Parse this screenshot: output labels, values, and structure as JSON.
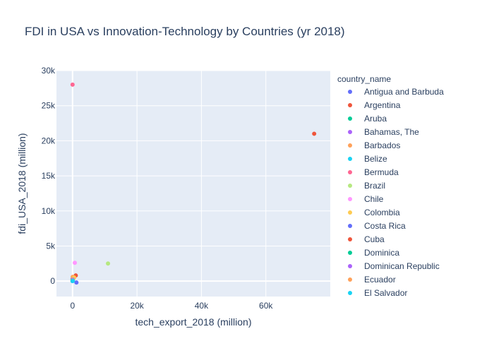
{
  "chart_data": {
    "type": "scatter",
    "title": "FDI in USA vs Innovation-Technology by Countries (yr 2018)",
    "xlabel": "tech_export_2018 (million)",
    "ylabel": "fdi_USA_2018 (million)",
    "xlim": [
      -5000,
      80000
    ],
    "ylim": [
      -2200,
      30000
    ],
    "x_ticks": [
      {
        "value": 0,
        "label": "0"
      },
      {
        "value": 20000,
        "label": "20k"
      },
      {
        "value": 40000,
        "label": "40k"
      },
      {
        "value": 60000,
        "label": "60k"
      }
    ],
    "y_ticks": [
      {
        "value": 0,
        "label": "0"
      },
      {
        "value": 5000,
        "label": "5k"
      },
      {
        "value": 10000,
        "label": "10k"
      },
      {
        "value": 15000,
        "label": "15k"
      },
      {
        "value": 20000,
        "label": "20k"
      },
      {
        "value": 25000,
        "label": "25k"
      },
      {
        "value": 30000,
        "label": "30k"
      }
    ],
    "grid": true,
    "legend_title": "country_name",
    "legend_position": "right",
    "series": [
      {
        "name": "Antigua and Barbuda",
        "color": "#636efa",
        "x": [
          0
        ],
        "y": [
          0
        ]
      },
      {
        "name": "Argentina",
        "color": "#EF553B",
        "x": [
          1000
        ],
        "y": [
          800
        ]
      },
      {
        "name": "Aruba",
        "color": "#00cc96",
        "x": [
          0
        ],
        "y": [
          300
        ]
      },
      {
        "name": "Bahamas, The",
        "color": "#ab63fa",
        "x": [
          0
        ],
        "y": [
          200
        ]
      },
      {
        "name": "Barbados",
        "color": "#FFA15A",
        "x": [
          50
        ],
        "y": [
          600
        ]
      },
      {
        "name": "Belize",
        "color": "#19d3f3",
        "x": [
          0
        ],
        "y": [
          0
        ]
      },
      {
        "name": "Bermuda",
        "color": "#FF6692",
        "x": [
          0
        ],
        "y": [
          28000
        ]
      },
      {
        "name": "Brazil",
        "color": "#B6E880",
        "x": [
          11000
        ],
        "y": [
          2500
        ]
      },
      {
        "name": "Chile",
        "color": "#FF97FF",
        "x": [
          700
        ],
        "y": [
          2600
        ]
      },
      {
        "name": "Colombia",
        "color": "#FECB52",
        "x": [
          500
        ],
        "y": [
          500
        ]
      },
      {
        "name": "Costa Rica",
        "color": "#636efa",
        "x": [
          1200
        ],
        "y": [
          -200
        ]
      },
      {
        "name": "Cuba",
        "color": "#EF553B",
        "x": [
          75000
        ],
        "y": [
          21000
        ]
      },
      {
        "name": "Dominica",
        "color": "#00cc96",
        "x": [
          0
        ],
        "y": [
          100
        ]
      },
      {
        "name": "Dominican Republic",
        "color": "#ab63fa",
        "x": [
          100
        ],
        "y": [
          200
        ]
      },
      {
        "name": "Ecuador",
        "color": "#FFA15A",
        "x": [
          100
        ],
        "y": [
          100
        ]
      },
      {
        "name": "El Salvador",
        "color": "#19d3f3",
        "x": [
          80
        ],
        "y": [
          50
        ]
      }
    ]
  }
}
